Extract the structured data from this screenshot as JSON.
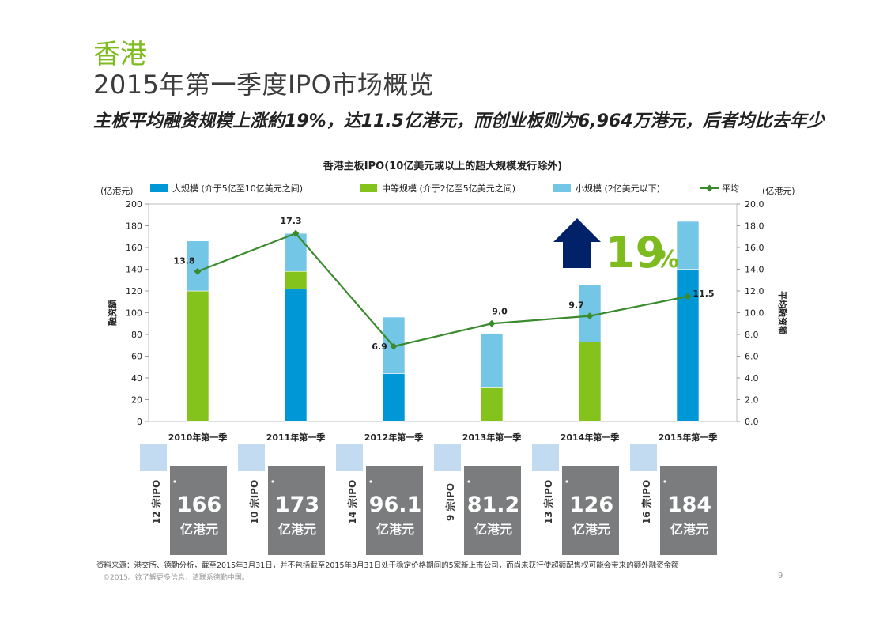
{
  "header": {
    "region": "香港",
    "title": "2015年第一季度IPO市场概览",
    "subtitle": "主板平均融资规模上涨約19%，达11.5亿港元，而创业板则为6,964万港元，后者均比去年少"
  },
  "colors": {
    "large": "#0097d7",
    "medium": "#84c21c",
    "small": "#74c6e6",
    "average": "#3a8a2e",
    "arrow": "#012169",
    "accent": "#7dbb1e",
    "box_dark": "#7b7c7e",
    "box_light": "#c2dbf1"
  },
  "chart_data": {
    "type": "bar",
    "title": "香港主板IPO(10亿美元或以上的超大规模发行除外)",
    "categories": [
      "2010年第一季",
      "2011年第一季",
      "2012年第一季",
      "2013年第一季",
      "2014年第一季",
      "2015年第一季"
    ],
    "stacked": true,
    "series": [
      {
        "name": "大规模 (介于5亿至10亿美元之间)",
        "key": "large",
        "values": [
          0,
          122,
          44,
          0,
          0,
          140
        ]
      },
      {
        "name": "中等规模 (介于2亿至5亿美元之间)",
        "key": "medium",
        "values": [
          120,
          16,
          0,
          31,
          73,
          0
        ]
      },
      {
        "name": "小规模 (2亿美元以下)",
        "key": "small",
        "values": [
          46,
          35,
          52,
          50,
          53,
          44
        ]
      }
    ],
    "average": {
      "name": "平均",
      "axis": "right",
      "values": [
        13.8,
        17.3,
        6.9,
        9.0,
        9.7,
        11.5
      ],
      "labels": [
        "13.8",
        "17.3",
        "6.9",
        "9.0",
        "9.7",
        "11.5"
      ]
    },
    "left_axis": {
      "unit": "(亿港元)",
      "label": "融资额",
      "ylim": [
        0,
        200
      ],
      "ticks": [
        "0",
        "20",
        "40",
        "60",
        "80",
        "100",
        "120",
        "140",
        "160",
        "180",
        "200"
      ]
    },
    "right_axis": {
      "unit": "(亿港元)",
      "label": "平均融资额",
      "ylim": [
        0,
        20
      ],
      "ticks": [
        "0.0",
        "2.0",
        "4.0",
        "6.0",
        "8.0",
        "10.0",
        "12.0",
        "14.0",
        "16.0",
        "18.0",
        "20.0"
      ]
    },
    "annotation": {
      "number": "19",
      "symbol": "%"
    },
    "summary": [
      {
        "count": "12 宗IPO",
        "total": "166",
        "unit": "亿港元"
      },
      {
        "count": "10 宗IPO",
        "total": "173",
        "unit": "亿港元"
      },
      {
        "count": "14 宗IPO",
        "total": "96.1",
        "unit": "亿港元"
      },
      {
        "count": "9 宗IPO",
        "total": "81.2",
        "unit": "亿港元"
      },
      {
        "count": "13 宗IPO",
        "total": "126",
        "unit": "亿港元"
      },
      {
        "count": "16 宗IPO",
        "total": "184",
        "unit": "亿港元"
      }
    ]
  },
  "footer": {
    "source": "资料来源：港交所、德勤分析，截至2015年3月31日，并不包括截至2015年3月31日处于稳定价格期间的5家新上市公司，而尚未获行使超额配售权可能会带来的额外融资金额",
    "copyright": "©2015。欲了解更多信息，请联系德勤中国。",
    "page": "9"
  }
}
